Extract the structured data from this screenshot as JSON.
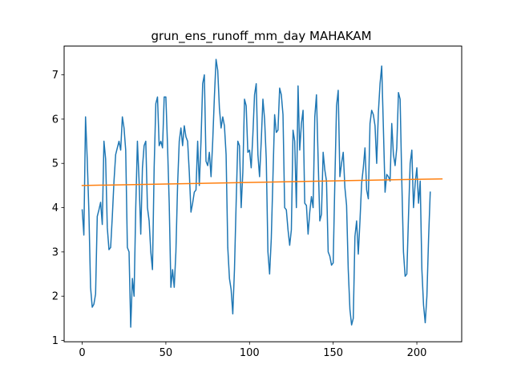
{
  "chart_data": {
    "type": "line",
    "title": "grun_ens_runoff_mm_day MAHAKAM",
    "xlabel": "",
    "ylabel": "",
    "xlim": [
      -10.8,
      226.8
    ],
    "ylim": [
      0.97,
      7.65
    ],
    "xticks": [
      0,
      50,
      100,
      150,
      200
    ],
    "yticks": [
      1,
      2,
      3,
      4,
      5,
      6,
      7
    ],
    "grid": false,
    "legend": "none",
    "series": [
      {
        "color": "#1f77b4",
        "values": [
          3.95,
          3.38,
          6.05,
          5.1,
          3.9,
          2.2,
          1.75,
          1.82,
          2.05,
          3.8,
          3.95,
          4.12,
          3.62,
          5.5,
          5.1,
          3.55,
          3.05,
          3.1,
          3.8,
          4.6,
          5.2,
          5.35,
          5.5,
          5.3,
          6.05,
          5.8,
          5.3,
          3.1,
          3.0,
          1.3,
          2.4,
          2.0,
          4.0,
          5.5,
          4.6,
          3.4,
          4.9,
          5.4,
          5.5,
          4.0,
          3.7,
          3.0,
          2.6,
          4.9,
          6.35,
          6.5,
          5.4,
          5.5,
          5.35,
          6.5,
          6.5,
          5.4,
          4.1,
          2.2,
          2.6,
          2.2,
          3.0,
          4.5,
          5.5,
          5.8,
          5.4,
          5.85,
          5.6,
          5.5,
          4.8,
          3.9,
          4.1,
          4.35,
          4.4,
          5.5,
          4.5,
          5.5,
          6.8,
          7.0,
          5.05,
          4.95,
          5.25,
          4.7,
          5.5,
          6.5,
          7.35,
          7.1,
          6.25,
          5.8,
          6.05,
          5.85,
          5.2,
          3.1,
          2.4,
          2.15,
          1.6,
          2.6,
          4.1,
          5.5,
          5.4,
          4.0,
          4.8,
          6.45,
          6.3,
          5.25,
          5.3,
          4.9,
          5.65,
          6.55,
          6.8,
          5.2,
          4.7,
          5.5,
          6.45,
          6.0,
          5.1,
          3.0,
          2.5,
          3.3,
          4.7,
          6.1,
          5.7,
          5.75,
          6.7,
          6.55,
          6.1,
          4.0,
          3.95,
          3.5,
          3.15,
          3.5,
          5.75,
          5.5,
          4.0,
          6.75,
          5.3,
          5.9,
          6.2,
          4.1,
          4.05,
          3.4,
          3.9,
          4.25,
          4.0,
          6.05,
          6.55,
          5.1,
          3.7,
          3.85,
          5.25,
          4.85,
          4.6,
          3.0,
          2.9,
          2.7,
          2.75,
          4.6,
          6.3,
          6.65,
          4.7,
          5.0,
          5.25,
          4.45,
          4.05,
          2.6,
          1.7,
          1.35,
          1.5,
          3.35,
          3.7,
          2.95,
          3.7,
          4.55,
          4.9,
          5.35,
          4.4,
          4.2,
          5.9,
          6.2,
          6.1,
          5.85,
          5.0,
          6.15,
          6.8,
          7.2,
          5.8,
          4.35,
          4.75,
          4.7,
          4.6,
          5.9,
          5.2,
          4.95,
          5.35,
          6.6,
          6.45,
          4.6,
          3.0,
          2.45,
          2.5,
          3.8,
          5.0,
          5.3,
          4.0,
          4.55,
          4.9,
          4.1,
          4.6,
          2.6,
          1.8,
          1.4,
          2.0,
          3.3,
          4.35
        ]
      },
      {
        "color": "#ff7f0e",
        "x": [
          0,
          215
        ],
        "values": [
          4.5,
          4.65
        ]
      }
    ]
  }
}
